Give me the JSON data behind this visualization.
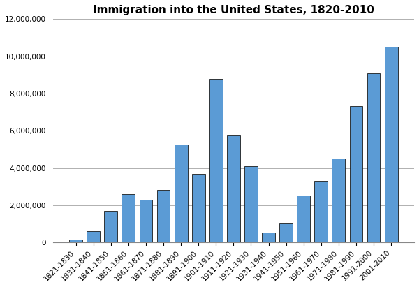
{
  "title": "Immigration into the United States, 1820-2010",
  "categories": [
    "1821-1830",
    "1831-1840",
    "1841-1850",
    "1851-1860",
    "1861-1870",
    "1871-1880",
    "1881-1890",
    "1891-1900",
    "1901-1910",
    "1911-1920",
    "1921-1930",
    "1931-1940",
    "1941-1950",
    "1951-1960",
    "1961-1970",
    "1971-1980",
    "1981-1990",
    "1991-2000",
    "2001-2010"
  ],
  "values": [
    143439,
    599125,
    1713251,
    2598214,
    2314824,
    2812191,
    5246613,
    3687564,
    8795386,
    5735811,
    4107209,
    528431,
    1035039,
    2515479,
    3321677,
    4493314,
    7338062,
    9095417,
    10501052
  ],
  "bar_color": "#5b9bd5",
  "bar_edge_color": "#1a1a1a",
  "bar_edge_width": 0.6,
  "background_color": "#ffffff",
  "ylim": [
    0,
    12000000
  ],
  "yticks": [
    0,
    2000000,
    4000000,
    6000000,
    8000000,
    10000000,
    12000000
  ],
  "title_fontsize": 11,
  "tick_fontsize": 7.5,
  "grid_color": "#b0b0b0",
  "grid_linewidth": 0.7
}
